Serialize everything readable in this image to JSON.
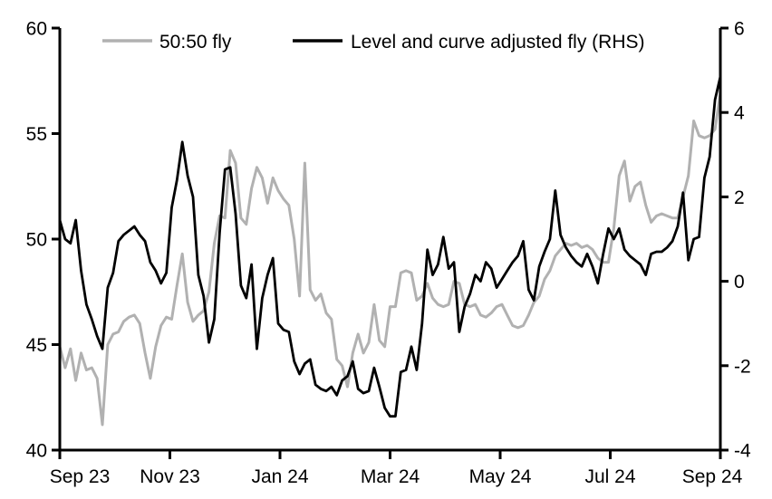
{
  "chart_data": {
    "type": "line",
    "title": "",
    "legend_position": "top",
    "grid": false,
    "x_tick_labels": [
      "Sep 23",
      "Nov 23",
      "Jan 24",
      "Mar 24",
      "May 24",
      "Jul 24",
      "Sep 24"
    ],
    "left_axis": {
      "min": 40,
      "max": 60,
      "ticks": [
        60,
        55,
        50,
        45,
        40
      ]
    },
    "right_axis": {
      "min": -4,
      "max": 6,
      "ticks": [
        6,
        4,
        2,
        0,
        -2,
        -4
      ]
    },
    "axis_color": "#000000",
    "series": [
      {
        "name": "50:50 fly",
        "axis": "left",
        "color": "#b1b1b1",
        "width": 3,
        "values": [
          44.9,
          43.9,
          44.8,
          43.3,
          44.6,
          43.8,
          43.9,
          43.4,
          41.2,
          45.0,
          45.5,
          45.6,
          46.1,
          46.3,
          46.4,
          46.0,
          44.6,
          43.4,
          44.9,
          45.9,
          46.3,
          46.2,
          47.8,
          49.3,
          47.0,
          46.1,
          46.4,
          46.6,
          47.5,
          49.8,
          51.1,
          51.0,
          54.2,
          53.6,
          51.0,
          50.7,
          52.4,
          53.4,
          52.9,
          51.7,
          52.9,
          52.3,
          51.9,
          51.6,
          50.0,
          47.3,
          53.6,
          47.6,
          47.1,
          47.4,
          46.5,
          46.2,
          44.3,
          44.0,
          43.0,
          44.6,
          45.5,
          44.6,
          45.1,
          46.9,
          45.2,
          44.9,
          46.8,
          46.8,
          48.4,
          48.5,
          48.4,
          47.1,
          47.3,
          47.9,
          47.2,
          46.9,
          46.8,
          46.9,
          48.0,
          47.9,
          46.9,
          46.8,
          46.9,
          46.4,
          46.3,
          46.5,
          46.8,
          46.9,
          46.4,
          45.9,
          45.8,
          45.9,
          46.4,
          47.0,
          47.3,
          48.1,
          48.5,
          49.2,
          49.5,
          49.8,
          49.7,
          49.8,
          49.6,
          49.7,
          49.5,
          49.1,
          48.9,
          48.9,
          50.5,
          53.0,
          53.7,
          51.8,
          52.5,
          52.7,
          51.6,
          50.8,
          51.1,
          51.2,
          51.1,
          51.0,
          51.0,
          52.0,
          53.0,
          55.6,
          54.9,
          54.8,
          54.9,
          55.2,
          56.9
        ]
      },
      {
        "name": "Level and curve adjusted fly (RHS)",
        "axis": "right",
        "color": "#000000",
        "width": 2.8,
        "values": [
          1.45,
          1.0,
          0.9,
          1.45,
          0.25,
          -0.55,
          -0.9,
          -1.3,
          -1.6,
          -0.15,
          0.2,
          0.95,
          1.1,
          1.2,
          1.3,
          1.1,
          0.95,
          0.45,
          0.25,
          -0.05,
          0.2,
          1.75,
          2.4,
          3.3,
          2.5,
          2.0,
          0.15,
          -0.35,
          -1.45,
          -0.9,
          1.15,
          2.65,
          2.7,
          1.6,
          -0.1,
          -0.4,
          0.4,
          -1.6,
          -0.4,
          0.15,
          0.55,
          -1.0,
          -1.15,
          -1.2,
          -1.9,
          -2.2,
          -1.95,
          -1.85,
          -2.45,
          -2.55,
          -2.6,
          -2.5,
          -2.7,
          -2.35,
          -2.25,
          -1.9,
          -2.55,
          -2.65,
          -2.6,
          -2.05,
          -2.5,
          -3.0,
          -3.2,
          -3.2,
          -2.15,
          -2.1,
          -1.55,
          -2.1,
          -1.0,
          0.75,
          0.15,
          0.4,
          1.05,
          0.3,
          0.45,
          -1.2,
          -0.6,
          -0.3,
          0.15,
          0.0,
          0.45,
          0.3,
          -0.15,
          0.05,
          0.25,
          0.45,
          0.6,
          0.95,
          -0.2,
          -0.45,
          0.35,
          0.7,
          1.0,
          2.15,
          1.1,
          0.8,
          0.6,
          0.45,
          0.35,
          0.65,
          0.35,
          -0.05,
          0.65,
          1.25,
          1.0,
          1.25,
          0.75,
          0.6,
          0.5,
          0.4,
          0.15,
          0.65,
          0.7,
          0.7,
          0.8,
          0.95,
          1.3,
          2.1,
          0.5,
          1.0,
          1.05,
          2.45,
          2.95,
          4.3,
          4.85
        ]
      }
    ]
  }
}
